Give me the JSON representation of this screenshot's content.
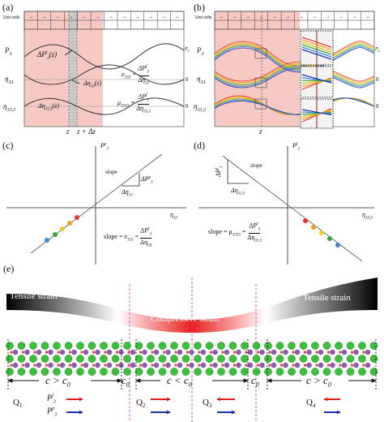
{
  "panel_a": {
    "label": "(a)",
    "unit_cells": "Unit cells",
    "row_P": "P",
    "row_P_sub": "3",
    "row_P_right": "P",
    "row_P_right_sub": "s",
    "row_eta": "η",
    "row_eta_sub": "33",
    "row_eta2": "η",
    "row_eta2_sub": "33,3",
    "zero1": "0",
    "zero2": "0",
    "dP": "ΔP",
    "dP_sup": "f",
    "dP_sub": "3",
    "dP_arg": "(z)",
    "deta": "Δη",
    "deta_sub": "33",
    "deta_arg": "(z)",
    "deta2": "Δη",
    "deta2_sub": "33,3",
    "deta2_arg": "(z)",
    "eq1_lhs": "e",
    "eq1_lhs_sub": "333",
    "eq1_num": "ΔP",
    "eq1_num_sup": "f",
    "eq1_num_sub": "3",
    "eq1_den": "Δη",
    "eq1_den_sub": "33",
    "eq2_lhs": "μ",
    "eq2_lhs_sub": "3333",
    "eq2_num": "ΔP",
    "eq2_num_sup": "f",
    "eq2_num_sub": "3",
    "eq2_den": "Δη",
    "eq2_den_sub": "33,3",
    "z": "z",
    "zdz": "z + Δz",
    "cells": [
      "c1",
      "c2",
      "c3",
      "c4",
      "c5",
      "c6",
      "c7",
      "c8",
      "c9",
      "c10",
      "c11",
      "c12"
    ],
    "cells_right": "c1 c2 c3 c4 c5 c6 c7 c8"
  },
  "panel_b": {
    "label": "(b)",
    "unit_cells": "Unit cells",
    "row_P": "P",
    "row_P_sub": "3",
    "row_P_right": "P",
    "row_P_right_sub": "s",
    "row_eta": "η",
    "row_eta_sub": "33",
    "row_eta2": "η",
    "row_eta2_sub": "33,3",
    "zero1": "0",
    "zero2": "0",
    "z": "z"
  },
  "panel_c": {
    "label": "(c)",
    "yaxis": "P",
    "yaxis_sup": "p",
    "yaxis_sub": "3",
    "xaxis": "η",
    "xaxis_sub": "33",
    "slope": "slope",
    "dP": "ΔP",
    "dP_sup": "p",
    "dP_sub": "3",
    "deta": "Δη",
    "deta_sub": "33",
    "eq_lhs": "slope = e",
    "eq_lhs_sub": "333",
    "eq_num": "ΔP",
    "eq_num_sup": "f",
    "eq_num_sub": "3",
    "eq_den": "Δη",
    "eq_den_sub": "33"
  },
  "panel_d": {
    "label": "(d)",
    "yaxis": "P",
    "yaxis_sup": "f",
    "yaxis_sub": "3",
    "xaxis": "η",
    "xaxis_sub": "33,3",
    "slope": "slope",
    "dP": "ΔP",
    "dP_sup": "f",
    "dP_sub": "3",
    "deta": "Δη",
    "deta_sub": "33,3",
    "eq_lhs": "slope = μ",
    "eq_lhs_sub": "3333",
    "eq_num": "ΔP",
    "eq_num_sup": "f",
    "eq_num_sub": "3",
    "eq_den": "Δη",
    "eq_den_sub": "33,3"
  },
  "panel_e": {
    "label": "(e)",
    "tensile_left": "Tensile strain",
    "tensile_right": "Tensile strain",
    "compressive": "Compressive strain",
    "c_gt_c0_left": "c > c",
    "c0_sub": "0",
    "c0_a": "c",
    "c_lt_c0": "c < c",
    "c0_b": "c",
    "c_gt_c0_right": "c > c",
    "Q1": "Q",
    "Q1_sub": "1",
    "Q2": "Q",
    "Q2_sub": "2",
    "Q3": "Q",
    "Q3_sub": "3",
    "Q4": "Q",
    "Q4_sub": "4",
    "Pf": "P",
    "Pf_sup": "f",
    "Pf_sub": "3",
    "Pp": "P",
    "Pp_sup": "p",
    "Pp_sub": "3"
  },
  "colors": {
    "pink_region": "#f6c9c4",
    "red_arrow": "#e21b1b",
    "blue_arrow": "#1c2fb0",
    "atom_green": "#3cc03c",
    "atom_purple": "#8a5fb0",
    "magenta_line": "#d247d2",
    "compressive_red": "#e8201e",
    "dots": [
      "#e8352b",
      "#f0a020",
      "#e6d21e",
      "#3aa63a",
      "#3a8ad8"
    ]
  }
}
